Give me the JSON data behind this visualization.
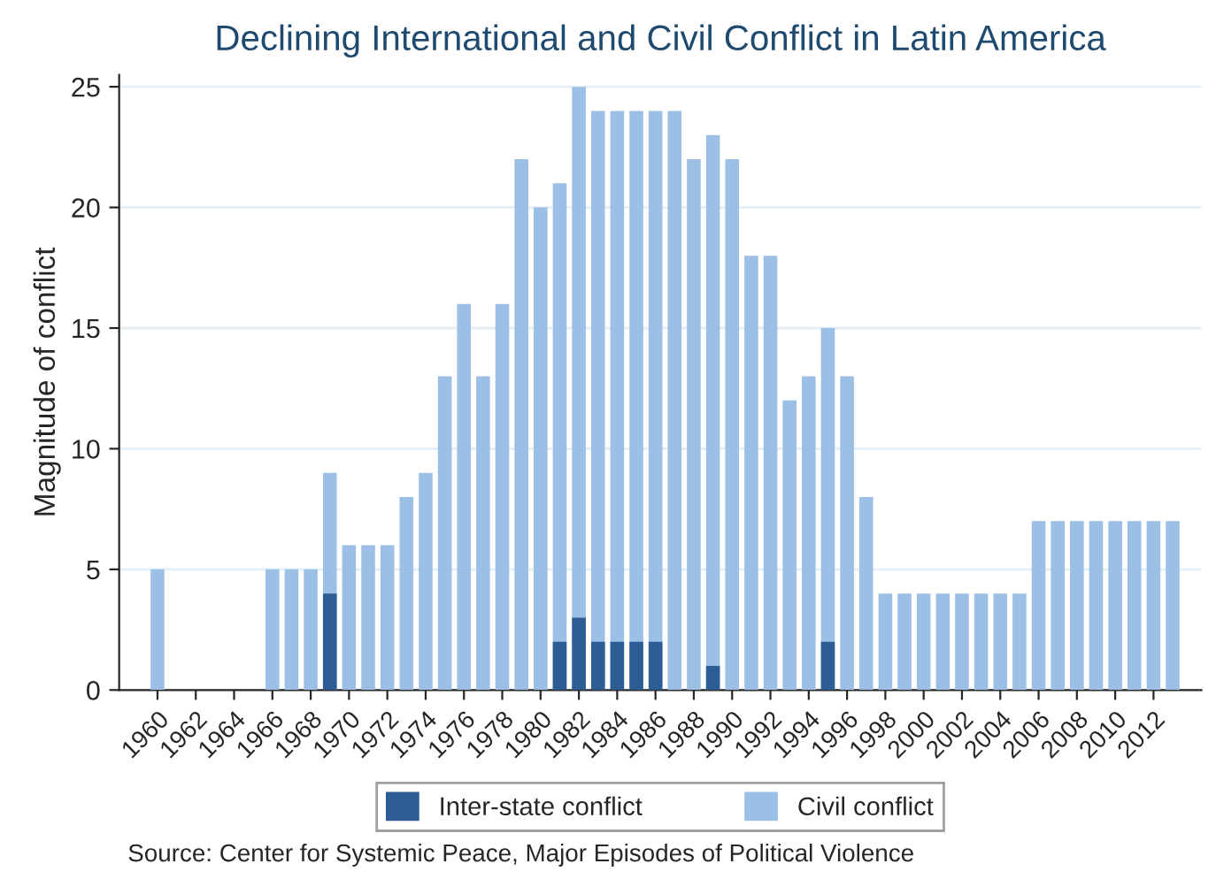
{
  "chart_data": {
    "type": "bar",
    "title": "Declining International and Civil Conflict in Latin America",
    "ylabel": "Magnitude of conflict",
    "x": [
      1960,
      1961,
      1962,
      1963,
      1964,
      1965,
      1966,
      1967,
      1968,
      1969,
      1970,
      1971,
      1972,
      1973,
      1974,
      1975,
      1976,
      1977,
      1978,
      1979,
      1980,
      1981,
      1982,
      1983,
      1984,
      1985,
      1986,
      1987,
      1988,
      1989,
      1990,
      1991,
      1992,
      1993,
      1994,
      1995,
      1996,
      1997,
      1998,
      1999,
      2000,
      2001,
      2002,
      2003,
      2004,
      2005,
      2006,
      2007,
      2008,
      2009,
      2010,
      2011,
      2012,
      2013
    ],
    "series": [
      {
        "name": "Inter-state conflict",
        "color": "#2c5d94",
        "values": [
          null,
          null,
          null,
          null,
          null,
          null,
          null,
          null,
          null,
          4,
          null,
          null,
          null,
          null,
          null,
          null,
          null,
          null,
          null,
          null,
          null,
          2,
          3,
          2,
          2,
          2,
          2,
          null,
          null,
          1,
          null,
          null,
          null,
          null,
          null,
          2,
          null,
          null,
          null,
          null,
          null,
          null,
          null,
          null,
          null,
          null,
          null,
          null,
          null,
          null,
          null,
          null,
          null,
          null
        ]
      },
      {
        "name": "Civil conflict",
        "color": "#9bbfe5",
        "values": [
          5,
          null,
          null,
          null,
          null,
          null,
          5,
          5,
          5,
          9,
          6,
          6,
          6,
          8,
          9,
          13,
          16,
          13,
          16,
          22,
          20,
          21,
          25,
          24,
          24,
          24,
          24,
          24,
          22,
          23,
          22,
          18,
          18,
          12,
          13,
          15,
          13,
          8,
          4,
          4,
          4,
          4,
          4,
          4,
          4,
          4,
          7,
          7,
          7,
          7,
          7,
          7,
          7,
          7
        ]
      }
    ],
    "xlim": [
      1958,
      2014.5
    ],
    "xticks": [
      1960,
      1962,
      1964,
      1966,
      1968,
      1970,
      1972,
      1974,
      1976,
      1978,
      1980,
      1982,
      1984,
      1986,
      1988,
      1990,
      1992,
      1994,
      1996,
      1998,
      2000,
      2002,
      2004,
      2006,
      2008,
      2010,
      2012
    ],
    "ylim": [
      0,
      25.5
    ],
    "yticks": [
      0,
      5,
      10,
      15,
      20,
      25
    ],
    "grid": "y",
    "legend": "bottom",
    "annotations": [
      "Source: Center for Systemic Peace, Major Episodes of Political Violence"
    ]
  }
}
